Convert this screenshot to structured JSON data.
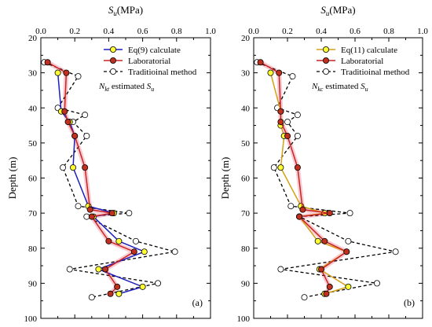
{
  "chart_data": [
    {
      "type": "line",
      "panel_label": "(a)",
      "xlabel_main": "S",
      "xlabel_sub": "u",
      "xlabel_unit": "(MPa)",
      "ylabel": "Depth (m)",
      "xlim": [
        0.0,
        1.0
      ],
      "ylim": [
        20,
        100
      ],
      "x_ticks": [
        "0.0",
        "0.2",
        "0.4",
        "0.6",
        "0.8",
        "1.0"
      ],
      "y_ticks": [
        "20",
        "30",
        "40",
        "50",
        "60",
        "70",
        "80",
        "90",
        "100"
      ],
      "legend_position": "top-right",
      "note_text_a": "N",
      "note_text_b": "kt",
      "note_text_c": " estimated ",
      "note_text_d": "S",
      "note_text_e": "u",
      "series": [
        {
          "name": "Eq(9) calculate",
          "color": "#1f1fbf",
          "marker_fill": "#ffff33",
          "points": [
            [
              0.1,
              30
            ],
            [
              0.12,
              41
            ],
            [
              0.17,
              44
            ],
            [
              0.2,
              48
            ],
            [
              0.19,
              57
            ],
            [
              0.28,
              68
            ],
            [
              0.43,
              70
            ],
            [
              0.31,
              71
            ],
            [
              0.46,
              78
            ],
            [
              0.61,
              81
            ],
            [
              0.34,
              86
            ],
            [
              0.6,
              91
            ],
            [
              0.46,
              93
            ]
          ]
        },
        {
          "name": "Laboratorial",
          "color": "#cc2222",
          "marker_fill": "#c0301e",
          "points": [
            [
              0.04,
              27
            ],
            [
              0.15,
              30
            ],
            [
              0.14,
              41
            ],
            [
              0.16,
              44
            ],
            [
              0.2,
              48
            ],
            [
              0.26,
              57
            ],
            [
              0.29,
              69
            ],
            [
              0.42,
              70
            ],
            [
              0.3,
              71
            ],
            [
              0.4,
              78
            ],
            [
              0.55,
              81
            ],
            [
              0.38,
              86
            ],
            [
              0.45,
              91
            ],
            [
              0.41,
              93
            ]
          ]
        },
        {
          "name": "Traditioinal method",
          "color": "#000000",
          "marker_fill": "#ffffff",
          "points": [
            [
              0.02,
              27
            ],
            [
              0.22,
              31
            ],
            [
              0.1,
              40
            ],
            [
              0.26,
              42
            ],
            [
              0.19,
              44
            ],
            [
              0.27,
              48
            ],
            [
              0.13,
              57
            ],
            [
              0.22,
              68
            ],
            [
              0.52,
              70
            ],
            [
              0.27,
              71
            ],
            [
              0.56,
              78
            ],
            [
              0.79,
              81
            ],
            [
              0.17,
              86
            ],
            [
              0.69,
              90
            ],
            [
              0.3,
              94
            ]
          ]
        }
      ]
    },
    {
      "type": "line",
      "panel_label": "(b)",
      "xlabel_main": "S",
      "xlabel_sub": "u",
      "xlabel_unit": "(MPa)",
      "ylabel": "Depth (m)",
      "xlim": [
        0.0,
        1.0
      ],
      "ylim": [
        20,
        100
      ],
      "x_ticks": [
        "0.0",
        "0.2",
        "0.4",
        "0.6",
        "0.8",
        "1.0"
      ],
      "y_ticks": [
        "20",
        "30",
        "40",
        "50",
        "60",
        "70",
        "80",
        "90",
        "100"
      ],
      "legend_position": "top-right",
      "note_text_a": "N",
      "note_text_b": "kc",
      "note_text_c": " estimated ",
      "note_text_d": "S",
      "note_text_e": "u",
      "series": [
        {
          "name": "Eq(11) calculate",
          "color": "#d4a017",
          "marker_fill": "#ffff33",
          "points": [
            [
              0.1,
              30
            ],
            [
              0.16,
              41
            ],
            [
              0.16,
              45
            ],
            [
              0.18,
              48
            ],
            [
              0.16,
              57
            ],
            [
              0.28,
              68
            ],
            [
              0.42,
              70
            ],
            [
              0.27,
              71
            ],
            [
              0.38,
              78
            ],
            [
              0.55,
              81
            ],
            [
              0.39,
              86
            ],
            [
              0.56,
              91
            ],
            [
              0.42,
              93
            ]
          ]
        },
        {
          "name": "Laboratorial",
          "color": "#cc2222",
          "marker_fill": "#c0301e",
          "points": [
            [
              0.04,
              27
            ],
            [
              0.15,
              30
            ],
            [
              0.16,
              41
            ],
            [
              0.16,
              44
            ],
            [
              0.2,
              48
            ],
            [
              0.26,
              57
            ],
            [
              0.29,
              69
            ],
            [
              0.45,
              70
            ],
            [
              0.27,
              71
            ],
            [
              0.42,
              78
            ],
            [
              0.55,
              81
            ],
            [
              0.4,
              86
            ],
            [
              0.45,
              91
            ],
            [
              0.43,
              93
            ]
          ]
        },
        {
          "name": "Traditioinal method",
          "color": "#000000",
          "marker_fill": "#ffffff",
          "points": [
            [
              0.02,
              27
            ],
            [
              0.23,
              31
            ],
            [
              0.14,
              40
            ],
            [
              0.26,
              42
            ],
            [
              0.2,
              44
            ],
            [
              0.26,
              48
            ],
            [
              0.12,
              57
            ],
            [
              0.22,
              68
            ],
            [
              0.57,
              70
            ],
            [
              0.27,
              71
            ],
            [
              0.56,
              78
            ],
            [
              0.84,
              81
            ],
            [
              0.16,
              86
            ],
            [
              0.73,
              90
            ],
            [
              0.3,
              94
            ]
          ]
        }
      ]
    }
  ]
}
